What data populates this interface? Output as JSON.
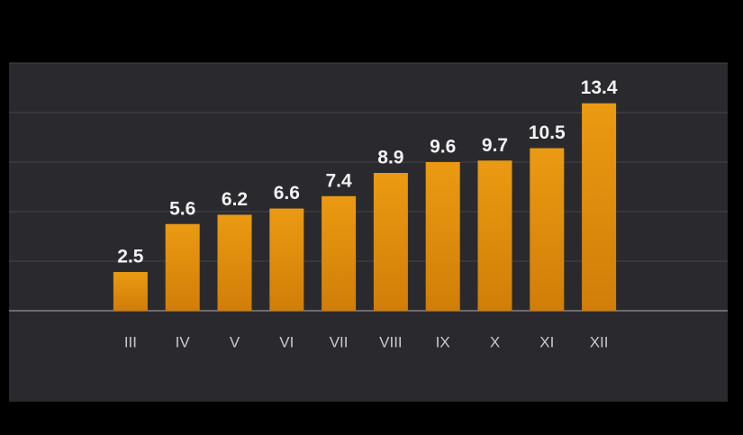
{
  "chart_data": {
    "type": "bar",
    "categories": [
      "III",
      "IV",
      "V",
      "VI",
      "VII",
      "VIII",
      "IX",
      "X",
      "XI",
      "XII"
    ],
    "values": [
      2.5,
      5.6,
      6.2,
      6.6,
      7.4,
      8.9,
      9.6,
      9.7,
      10.5,
      13.4
    ],
    "color": "#e3920f",
    "ylim": [
      0,
      16
    ],
    "yticks": [
      0,
      3.2,
      6.4,
      9.6,
      12.8,
      16
    ],
    "grid": true
  }
}
